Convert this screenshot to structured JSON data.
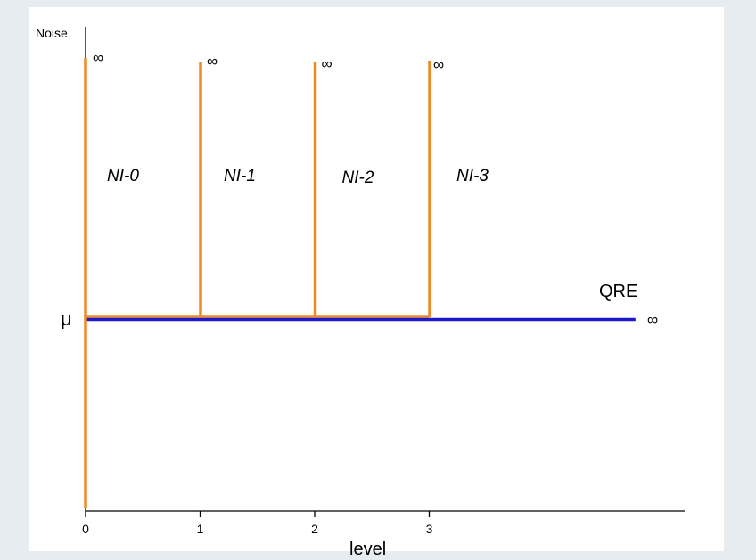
{
  "chart_data": {
    "type": "line",
    "xlabel": "level",
    "ylabel": "Noise",
    "y_marker_label": "μ",
    "x_ticks": [
      0,
      1,
      2,
      3
    ],
    "x_tick_labels": [
      "0",
      "1",
      "2",
      "3"
    ],
    "xlim": [
      0,
      5.2
    ],
    "y_levels": {
      "bottom": 0,
      "mu": 1,
      "top": 1.78
    },
    "series": [
      {
        "name": "QRE",
        "color": "#1a1acc",
        "points": [
          [
            0,
            1
          ],
          [
            4.8,
            1
          ]
        ],
        "end_label": "∞"
      }
    ],
    "regions": [
      {
        "label": "NI-0",
        "x": 0,
        "color": "#f08a24",
        "top_label": "∞",
        "full_height": true
      },
      {
        "label": "NI-1",
        "x": 1,
        "color": "#f08a24",
        "top_label": "∞"
      },
      {
        "label": "NI-2",
        "x": 2,
        "color": "#f08a24",
        "top_label": "∞"
      },
      {
        "label": "NI-3",
        "x": 3,
        "color": "#f08a24",
        "top_label": "∞"
      }
    ],
    "orange_base": {
      "from": 0,
      "to": 3,
      "y": 1,
      "color": "#f08a24"
    },
    "axis_color": "#000000"
  }
}
